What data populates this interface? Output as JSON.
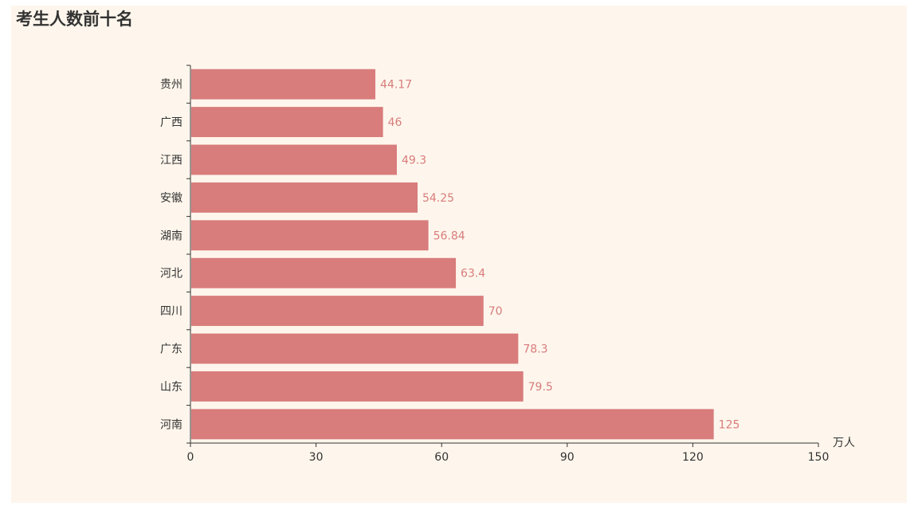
{
  "chart_data": {
    "type": "bar",
    "orientation": "horizontal",
    "title": "考生人数前十名",
    "categories": [
      "河南",
      "山东",
      "广东",
      "四川",
      "河北",
      "湖南",
      "安徽",
      "江西",
      "广西",
      "贵州"
    ],
    "values": [
      125,
      79.5,
      78.3,
      70,
      63.4,
      56.84,
      54.25,
      49.3,
      46,
      44.17
    ],
    "value_labels": [
      "125",
      "79.5",
      "78.3",
      "70",
      "63.4",
      "56.84",
      "54.25",
      "49.3",
      "46",
      "44.17"
    ],
    "xlim": [
      0,
      150
    ],
    "x_ticks": [
      "0",
      "30",
      "60",
      "90",
      "120",
      "150"
    ],
    "x_tick_values": [
      0,
      30,
      60,
      90,
      120,
      150
    ],
    "xlabel": "万人",
    "ylabel": "",
    "grid": false,
    "bar_color": "#d87c7c",
    "label_color": "#d87c7c",
    "background_color": "#fef6ec"
  }
}
